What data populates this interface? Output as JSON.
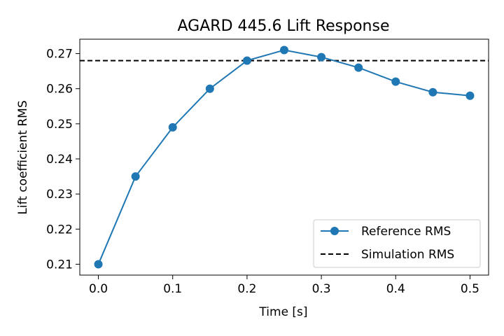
{
  "chart_data": {
    "type": "line",
    "title": "AGARD 445.6 Lift Response",
    "xlabel": "Time [s]",
    "ylabel": "Lift coefficient RMS",
    "xlim": [
      -0.025,
      0.525
    ],
    "ylim": [
      0.2069,
      0.2741
    ],
    "x_ticks": [
      0.0,
      0.1,
      0.2,
      0.3,
      0.4,
      0.5
    ],
    "x_tick_labels": [
      "0.0",
      "0.1",
      "0.2",
      "0.3",
      "0.4",
      "0.5"
    ],
    "y_ticks": [
      0.21,
      0.22,
      0.23,
      0.24,
      0.25,
      0.26,
      0.27
    ],
    "y_tick_labels": [
      "0.21",
      "0.22",
      "0.23",
      "0.24",
      "0.25",
      "0.26",
      "0.27"
    ],
    "grid": false,
    "legend_position": "lower-right",
    "series": [
      {
        "name": "Reference RMS",
        "style": "solid-line-circle-markers",
        "color": "#1f77b4",
        "x": [
          0.0,
          0.05,
          0.1,
          0.15,
          0.2,
          0.25,
          0.3,
          0.35,
          0.4,
          0.45,
          0.5
        ],
        "y": [
          0.21,
          0.235,
          0.249,
          0.26,
          0.268,
          0.271,
          0.269,
          0.266,
          0.262,
          0.259,
          0.258
        ]
      },
      {
        "name": "Simulation RMS",
        "style": "dashed-horizontal-line",
        "color": "#000000",
        "y": 0.268
      }
    ]
  }
}
